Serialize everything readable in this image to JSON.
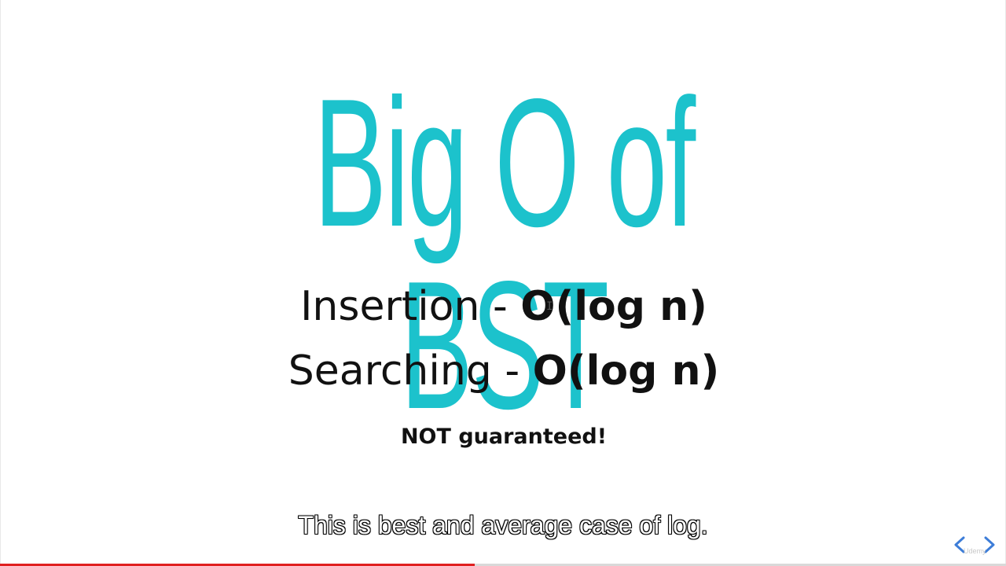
{
  "slide": {
    "title": "Big O of BST",
    "lines": [
      {
        "label": "Insertion - ",
        "complexity": "O(log n)"
      },
      {
        "label": "Searching - ",
        "complexity": "O(log n)"
      }
    ],
    "note": "NOT guaranteed!"
  },
  "caption": "This is best and average case of log.",
  "player": {
    "progress_fraction": 0.472,
    "watermark": "Udemy",
    "colors": {
      "title": "#1cc2cc",
      "progress": "#e02020",
      "nav_arrows": "#3d7dd8"
    }
  },
  "icons": {
    "prev": "chevron-left-icon",
    "next": "chevron-right-icon",
    "cursor": "text-cursor-icon"
  }
}
